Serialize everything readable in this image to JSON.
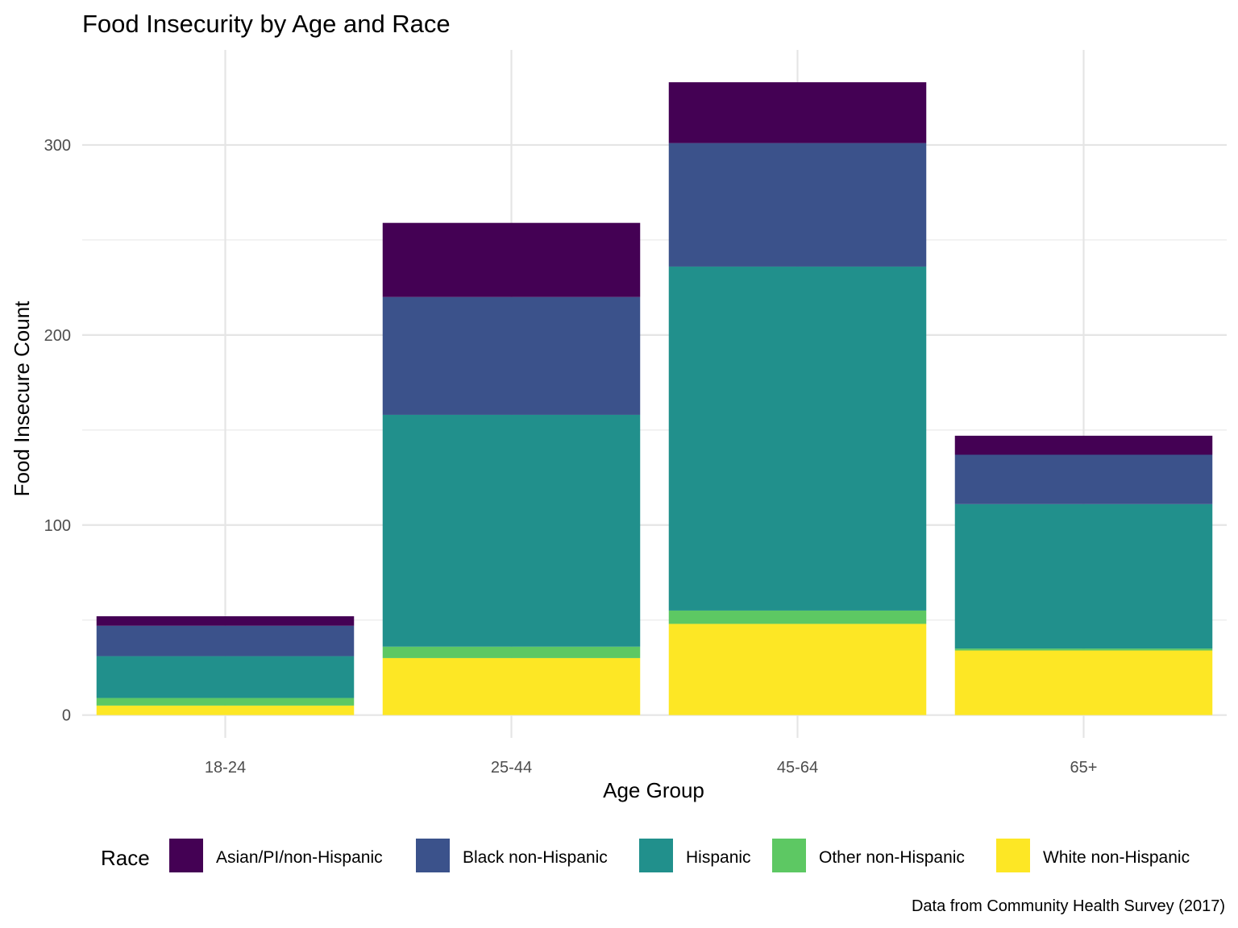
{
  "chart_data": {
    "type": "bar",
    "stacked": true,
    "title": "Food Insecurity by Age and Race",
    "xlabel": "Age Group",
    "ylabel": "Food Insecure Count",
    "caption": "Data from Community Health Survey (2017)",
    "legend_title": "Race",
    "legend_position": "bottom",
    "grid": true,
    "ylim": [
      -12,
      350
    ],
    "yticks": [
      0,
      100,
      200,
      300
    ],
    "yticks_minor": [
      50,
      150,
      250
    ],
    "categories": [
      "18-24",
      "25-44",
      "45-64",
      "65+"
    ],
    "series": [
      {
        "name": "White non-Hispanic",
        "color": "#FDE725",
        "values": [
          5,
          30,
          48,
          34
        ]
      },
      {
        "name": "Other non-Hispanic",
        "color": "#5DC863",
        "values": [
          4,
          6,
          7,
          1
        ]
      },
      {
        "name": "Hispanic",
        "color": "#21908C",
        "values": [
          22,
          122,
          181,
          76
        ]
      },
      {
        "name": "Black non-Hispanic",
        "color": "#3B528B",
        "values": [
          16,
          62,
          65,
          26
        ]
      },
      {
        "name": "Asian/PI/non-Hispanic",
        "color": "#440154",
        "values": [
          5,
          39,
          32,
          10
        ]
      }
    ],
    "legend_order": [
      "Asian/PI/non-Hispanic",
      "Black non-Hispanic",
      "Hispanic",
      "Other non-Hispanic",
      "White non-Hispanic"
    ]
  }
}
